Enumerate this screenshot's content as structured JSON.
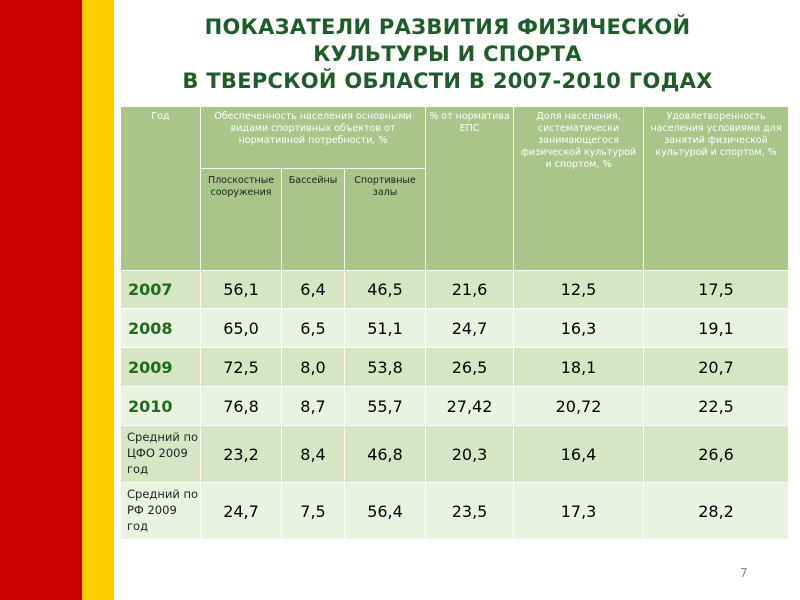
{
  "colors": {
    "stripe_red": "#cc0000",
    "stripe_yellow": "#ffcc00",
    "title_green": "#1f5c2a",
    "header_green": "#a8c58a",
    "row_light": "#d6e6c4",
    "row_white": "#eaf2e2",
    "year_green": "#1f6b1f"
  },
  "title": {
    "line1": "ПОКАЗАТЕЛИ РАЗВИТИЯ ФИЗИЧЕСКОЙ",
    "line2": "КУЛЬТУРЫ И СПОРТА",
    "line3": "В ТВЕРСКОЙ ОБЛАСТИ В 2007-2010 ГОДАХ"
  },
  "table": {
    "headers": {
      "year": "Год",
      "provision": "Обеспеченность населения основными видами спортивных объектов от нормативной потребности, %",
      "eps": "% от норматива ЕПС",
      "share": "Доля населения, систематически занимающегося физической культурой и спортом, %",
      "satisfaction": "Удовлетворенность населения условиями для занятий физической культурой и спортом, %"
    },
    "subheaders": {
      "flat": "Плоскостные сооружения",
      "pools": "Бассейны",
      "halls": "Спортивные залы"
    },
    "rows": [
      {
        "label": "2007",
        "flat": "56,1",
        "pools": "6,4",
        "halls": "46,5",
        "eps": "21,6",
        "share": "12,5",
        "satisfaction": "17,5"
      },
      {
        "label": "2008",
        "flat": "65,0",
        "pools": "6,5",
        "halls": "51,1",
        "eps": "24,7",
        "share": "16,3",
        "satisfaction": "19,1"
      },
      {
        "label": "2009",
        "flat": "72,5",
        "pools": "8,0",
        "halls": "53,8",
        "eps": "26,5",
        "share": "18,1",
        "satisfaction": "20,7"
      },
      {
        "label": "2010",
        "flat": "76,8",
        "pools": "8,7",
        "halls": "55,7",
        "eps": "27,42",
        "share": "20,72",
        "satisfaction": "22,5"
      },
      {
        "label": "Средний по ЦФО 2009 год",
        "flat": "23,2",
        "pools": "8,4",
        "halls": "46,8",
        "eps": "20,3",
        "share": "16,4",
        "satisfaction": "26,6"
      },
      {
        "label": "Средний по РФ 2009 год",
        "flat": "24,7",
        "pools": "7,5",
        "halls": "56,4",
        "eps": "23,5",
        "share": "17,3",
        "satisfaction": "28,2"
      }
    ]
  },
  "page_number": "7"
}
